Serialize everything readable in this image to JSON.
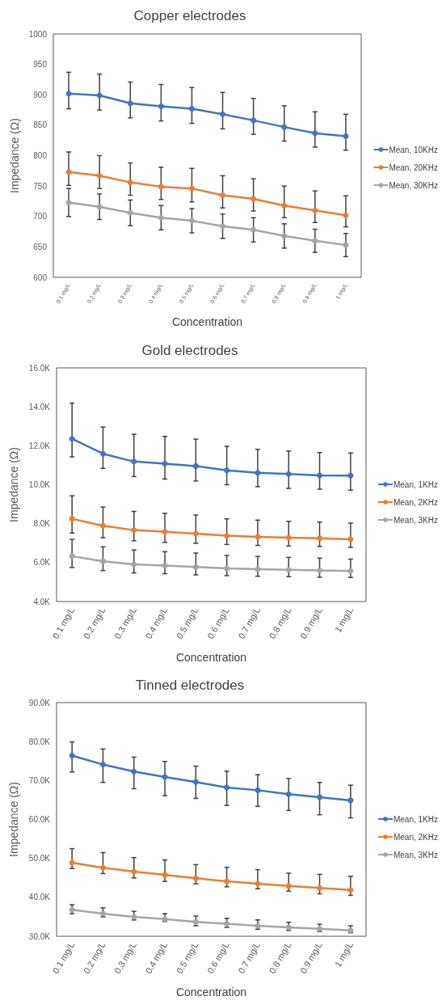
{
  "chart_data": [
    {
      "type": "line",
      "title": "Copper electrodes",
      "xlabel": "Concentration",
      "ylabel": "Impedance (Ω)",
      "categories": [
        "0.1 mg/L",
        "0.2 mg/L",
        "0.3 mg/L",
        "0.4 mg/L",
        "0.5 mg/L",
        "0.6 mg/L",
        "0.7 mg/L",
        "0.8 mg/L",
        "0.9 mg/L",
        "1 mg/L"
      ],
      "ylim": [
        600,
        1000
      ],
      "yticks": [
        600,
        650,
        700,
        750,
        800,
        850,
        900,
        950,
        1000
      ],
      "grid": false,
      "legend": "right",
      "marker": "circle",
      "line_style": "solid",
      "series": [
        {
          "name": "Mean, 10KHz",
          "color": "#4472c4",
          "values": [
            902,
            899,
            886,
            881,
            877,
            868,
            858,
            847,
            837,
            832
          ],
          "errors": [
            [
              877,
              937
            ],
            [
              875,
              934
            ],
            [
              862,
              921
            ],
            [
              857,
              917
            ],
            [
              853,
              912
            ],
            [
              844,
              904
            ],
            [
              835,
              894
            ],
            [
              824,
              882
            ],
            [
              814,
              872
            ],
            [
              809,
              868
            ]
          ]
        },
        {
          "name": "Mean, 20KHz",
          "color": "#ed7d31",
          "values": [
            773,
            767,
            756,
            749,
            746,
            735,
            729,
            718,
            710,
            702
          ],
          "errors": [
            [
              751,
              806
            ],
            [
              746,
              800
            ],
            [
              735,
              788
            ],
            [
              728,
              781
            ],
            [
              724,
              779
            ],
            [
              714,
              767
            ],
            [
              709,
              762
            ],
            [
              698,
              750
            ],
            [
              690,
              742
            ],
            [
              683,
              734
            ]
          ]
        },
        {
          "name": "Mean, 30KHz",
          "color": "#a5a5a5",
          "values": [
            723,
            716,
            706,
            698,
            693,
            684,
            678,
            668,
            660,
            653
          ],
          "errors": [
            23,
            21,
            21,
            20,
            20,
            20,
            20,
            20,
            19,
            19
          ]
        }
      ]
    },
    {
      "type": "line",
      "title": "Gold electrodes",
      "xlabel": "Concentration",
      "ylabel": "Impedance (Ω)",
      "categories": [
        "0.1 mg/L",
        "0.2 mg/L",
        "0.3 mg/L",
        "0.4 mg/L",
        "0.5 mg/L",
        "0.6 mg/L",
        "0.7 mg/L",
        "0.8 mg/L",
        "0.9 mg/L",
        "1 mg/L"
      ],
      "ylim": [
        4000,
        16000
      ],
      "yticks": [
        {
          "value": 4000,
          "label": "4.0K"
        },
        {
          "value": 6000,
          "label": "6.0K"
        },
        {
          "value": 8000,
          "label": "8.0K"
        },
        {
          "value": 10000,
          "label": "10.0K"
        },
        {
          "value": 12000,
          "label": "12.0K"
        },
        {
          "value": 14000,
          "label": "14.0K"
        },
        {
          "value": 16000,
          "label": "16.0K"
        }
      ],
      "grid": false,
      "legend": "right",
      "marker": "circle",
      "line_style": "solid",
      "series": [
        {
          "name": "Mean, 1KHz",
          "color": "#4472c4",
          "values": [
            12360,
            11590,
            11190,
            11080,
            10960,
            10740,
            10610,
            10550,
            10480,
            10470
          ],
          "errors": [
            [
              11430,
              14190
            ],
            [
              10840,
              12960
            ],
            [
              10420,
              12590
            ],
            [
              10290,
              12480
            ],
            [
              10190,
              12340
            ],
            [
              10000,
              11970
            ],
            [
              9900,
              11820
            ],
            [
              9810,
              11730
            ],
            [
              9770,
              11650
            ],
            [
              9720,
              11630
            ]
          ]
        },
        {
          "name": "Mean, 2KHz",
          "color": "#ed7d31",
          "values": [
            8250,
            7890,
            7670,
            7580,
            7490,
            7380,
            7320,
            7280,
            7250,
            7200
          ],
          "errors": [
            [
              7520,
              9430
            ],
            [
              7280,
              8850
            ],
            [
              7120,
              8630
            ],
            [
              7040,
              8530
            ],
            [
              6990,
              8440
            ],
            [
              6930,
              8250
            ],
            [
              6880,
              8180
            ],
            [
              6850,
              8120
            ],
            [
              6830,
              8080
            ],
            [
              6780,
              8030
            ]
          ]
        },
        {
          "name": "Mean, 3KHz",
          "color": "#a5a5a5",
          "values": [
            6330,
            6070,
            5910,
            5850,
            5780,
            5700,
            5660,
            5630,
            5600,
            5570
          ],
          "errors": [
            [
              5750,
              7190
            ],
            [
              5590,
              6810
            ],
            [
              5470,
              6650
            ],
            [
              5430,
              6560
            ],
            [
              5370,
              6490
            ],
            [
              5330,
              6370
            ],
            [
              5300,
              6320
            ],
            [
              5280,
              6270
            ],
            [
              5250,
              6230
            ],
            [
              5240,
              6180
            ]
          ]
        }
      ]
    },
    {
      "type": "line",
      "title": "Tinned electrodes",
      "xlabel": "Concentration",
      "ylabel": "Impedance (Ω)",
      "categories": [
        "0.1 mg/L",
        "0.2 mg/L",
        "0.3 mg/L",
        "0.4 mg/L",
        "0.5 mg/L",
        "0.6 mg/L",
        "0.7 mg/L",
        "0.8 mg/L",
        "0.9 mg/L",
        "1 mg/L"
      ],
      "ylim": [
        30000,
        90000
      ],
      "yticks": [
        {
          "value": 30000,
          "label": "30.0K"
        },
        {
          "value": 40000,
          "label": "40.0K"
        },
        {
          "value": 50000,
          "label": "50.0K"
        },
        {
          "value": 60000,
          "label": "60.0K"
        },
        {
          "value": 70000,
          "label": "70.0K"
        },
        {
          "value": 80000,
          "label": "80.0K"
        },
        {
          "value": 90000,
          "label": "90.0K"
        }
      ],
      "grid": false,
      "legend": "right",
      "marker": "circle",
      "line_style": "solid",
      "series": [
        {
          "name": "Mean, 1KHz",
          "color": "#4472c4",
          "values": [
            76400,
            74100,
            72300,
            70900,
            69600,
            68200,
            67500,
            66500,
            65700,
            64900
          ],
          "errors": [
            [
              72200,
              79900
            ],
            [
              69500,
              78100
            ],
            [
              67900,
              76000
            ],
            [
              66100,
              74900
            ],
            [
              65400,
              73700
            ],
            [
              63600,
              72400
            ],
            [
              63400,
              71500
            ],
            [
              62300,
              70500
            ],
            [
              61200,
              69500
            ],
            [
              60400,
              68800
            ]
          ]
        },
        {
          "name": "Mean, 2KHz",
          "color": "#ed7d31",
          "values": [
            48900,
            47600,
            46600,
            45800,
            44900,
            44100,
            43500,
            42900,
            42400,
            41900
          ],
          "errors": [
            [
              47400,
              52500
            ],
            [
              46100,
              51500
            ],
            [
              45000,
              50200
            ],
            [
              44100,
              49600
            ],
            [
              43500,
              48400
            ],
            [
              42700,
              47700
            ],
            [
              42200,
              47100
            ],
            [
              41600,
              46200
            ],
            [
              40900,
              45900
            ],
            [
              40500,
              45400
            ]
          ]
        },
        {
          "name": "Mean, 3KHz",
          "color": "#a5a5a5",
          "values": [
            36800,
            35800,
            35000,
            34400,
            33700,
            33200,
            32700,
            32300,
            31900,
            31500
          ],
          "errors": [
            [
              35800,
              38100
            ],
            [
              35000,
              37300
            ],
            [
              34200,
              36400
            ],
            [
              33800,
              35800
            ],
            [
              32700,
              35200
            ],
            [
              32300,
              34600
            ],
            [
              31800,
              34200
            ],
            [
              31500,
              33600
            ],
            [
              31200,
              33100
            ],
            [
              30900,
              32700
            ]
          ]
        }
      ]
    }
  ]
}
